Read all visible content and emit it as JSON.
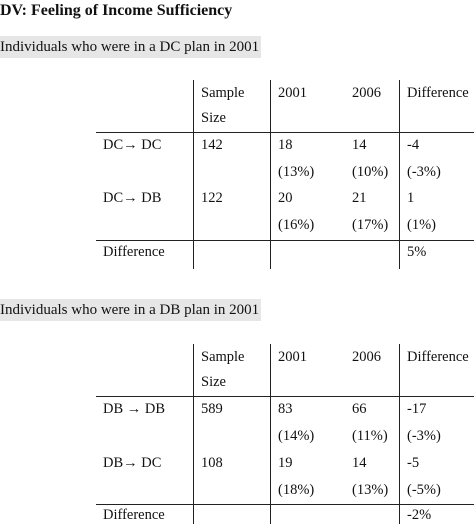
{
  "dv_title": "DV: Feeling of Income Sufficiency",
  "table1": {
    "title": "Individuals who were in a DC plan in 2001",
    "header": {
      "sample_line1": "Sample",
      "sample_line2": "Size",
      "y2001": "2001",
      "y2006": "2006",
      "difference": "Difference"
    },
    "rows": [
      {
        "label": "DC→ DC",
        "size": "142",
        "v2001": "18",
        "p2001": "(13%)",
        "v2006": "14",
        "p2006": "(10%)",
        "diff": "-4",
        "pdiff": "(-3%)"
      },
      {
        "label": "DC→ DB",
        "size": "122",
        "v2001": "20",
        "p2001": "(16%)",
        "v2006": "21",
        "p2006": "(17%)",
        "diff": "1",
        "pdiff": "(1%)"
      }
    ],
    "difference_row": {
      "label": "Difference",
      "value": "5%"
    }
  },
  "table2": {
    "title": "Individuals who were in a DB plan in 2001",
    "header": {
      "sample_line1": "Sample",
      "sample_line2": "Size",
      "y2001": "2001",
      "y2006": "2006",
      "difference": "Difference"
    },
    "rows": [
      {
        "label": "DB → DB",
        "size": "589",
        "v2001": "83",
        "p2001": "(14%)",
        "v2006": "66",
        "p2006": "(11%)",
        "diff": "-17",
        "pdiff": "(-3%)"
      },
      {
        "label": "DB→ DC",
        "size": "108",
        "v2001": "19",
        "p2001": "(18%)",
        "v2006": "14",
        "p2006": "(13%)",
        "diff": "-5",
        "pdiff": "(-5%)"
      }
    ],
    "difference_row": {
      "label": "Difference",
      "value": "-2%"
    }
  }
}
